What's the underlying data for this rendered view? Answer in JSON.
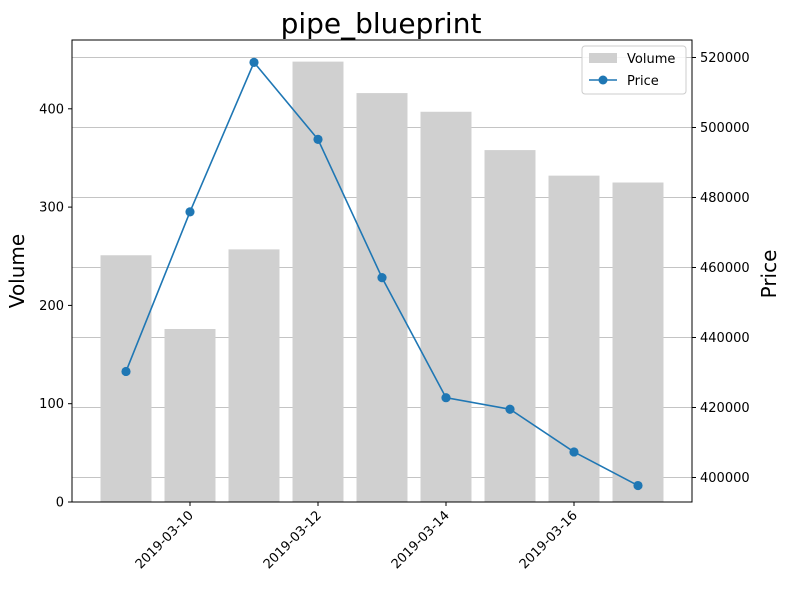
{
  "chart_data": {
    "type": "bar",
    "title": "pipe_blueprint",
    "x": [
      "2019-03-09",
      "2019-03-10",
      "2019-03-11",
      "2019-03-12",
      "2019-03-13",
      "2019-03-14",
      "2019-03-15",
      "2019-03-16",
      "2019-03-17"
    ],
    "x_tick_labels": [
      "2019-03-10",
      "2019-03-12",
      "2019-03-14",
      "2019-03-16"
    ],
    "xlabel": "",
    "series": [
      {
        "name": "Volume",
        "type": "bar",
        "axis": "left",
        "color": "#d0d0d0",
        "values": [
          251,
          176,
          257,
          448,
          416,
          397,
          358,
          332,
          325
        ]
      },
      {
        "name": "Price",
        "type": "line",
        "marker": "circle",
        "axis": "right",
        "color": "#1f77b4",
        "values": [
          430300,
          475900,
          518600,
          496600,
          457100,
          422800,
          419500,
          407300,
          397700
        ]
      }
    ],
    "left_axis": {
      "label": "Volume",
      "ylim": [
        0,
        470
      ],
      "ticks": [
        0,
        100,
        200,
        300,
        400
      ]
    },
    "right_axis": {
      "label": "Price",
      "ylim": [
        393000,
        525000
      ],
      "ticks": [
        400000,
        420000,
        440000,
        460000,
        480000,
        500000,
        520000
      ]
    },
    "grid": "horizontal lines at right-axis ticks",
    "legend": {
      "placement": "top-right",
      "entries": [
        "Volume",
        "Price"
      ]
    }
  }
}
